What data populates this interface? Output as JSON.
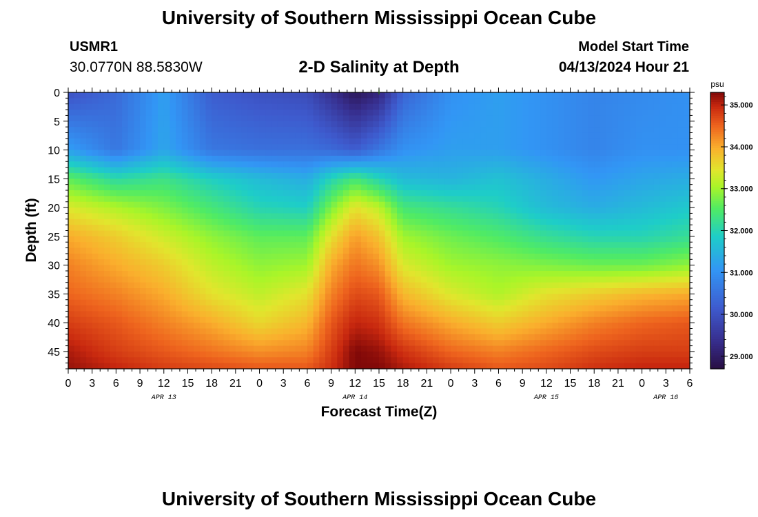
{
  "header": {
    "title": "University of Southern Mississippi Ocean Cube",
    "station_id": "USMR1",
    "station_coords": "30.0770N  88.5830W",
    "chart_title": "2-D Salinity at Depth",
    "model_label": "Model Start Time",
    "model_time": "04/13/2024 Hour 21"
  },
  "footer": {
    "title": "University of Southern Mississippi Ocean Cube"
  },
  "chart_data": {
    "type": "heatmap",
    "title": "2-D Salinity at Depth",
    "xlabel": "Forecast Time(Z)",
    "ylabel": "Depth (ft)",
    "x_ticks": [
      "0",
      "3",
      "6",
      "9",
      "12",
      "15",
      "18",
      "21",
      "0",
      "3",
      "6",
      "9",
      "12",
      "15",
      "18",
      "21",
      "0",
      "3",
      "6",
      "9",
      "12",
      "15",
      "18",
      "21",
      "0",
      "3",
      "6"
    ],
    "x_hours": [
      0,
      78
    ],
    "date_labels": [
      {
        "label": "APR 13",
        "hour": 12
      },
      {
        "label": "APR 14",
        "hour": 36
      },
      {
        "label": "APR 15",
        "hour": 60
      },
      {
        "label": "APR 16",
        "hour": 75
      }
    ],
    "y_ticks": [
      0,
      5,
      10,
      15,
      20,
      25,
      30,
      35,
      40,
      45
    ],
    "ylim": [
      0,
      48
    ],
    "colorbar": {
      "unit": "psu",
      "range": [
        28.7,
        35.3
      ],
      "tick_values": [
        29.0,
        30.0,
        31.0,
        32.0,
        33.0,
        34.0,
        35.0
      ],
      "tick_labels": [
        "29.000",
        "30.000",
        "31.000",
        "32.000",
        "33.000",
        "34.000",
        "35.000"
      ]
    },
    "depth_levels": [
      0,
      10,
      15,
      20,
      25,
      30,
      35,
      40,
      45,
      48
    ],
    "time_hours": [
      0,
      6,
      12,
      18,
      24,
      30,
      33,
      36,
      39,
      42,
      48,
      54,
      60,
      66,
      72,
      78
    ],
    "salinity": [
      [
        30.0,
        30.4,
        31.2,
        30.2,
        30.0,
        29.9,
        29.4,
        28.9,
        29.2,
        30.3,
        31.0,
        31.2,
        31.0,
        30.8,
        30.9,
        31.0
      ],
      [
        31.2,
        30.6,
        31.3,
        30.6,
        30.5,
        30.5,
        30.4,
        30.2,
        30.6,
        31.0,
        31.2,
        31.2,
        31.0,
        30.8,
        31.0,
        31.0
      ],
      [
        32.6,
        32.1,
        32.3,
        31.9,
        31.6,
        31.4,
        32.0,
        32.4,
        32.0,
        31.6,
        31.5,
        31.7,
        31.4,
        31.1,
        31.3,
        31.4
      ],
      [
        33.4,
        33.1,
        32.8,
        32.4,
        32.0,
        31.9,
        32.8,
        33.5,
        33.2,
        32.4,
        32.2,
        32.0,
        31.6,
        31.4,
        31.6,
        31.8
      ],
      [
        34.0,
        33.7,
        33.3,
        32.9,
        32.6,
        32.6,
        33.5,
        34.1,
        33.8,
        33.0,
        32.7,
        32.5,
        32.2,
        32.0,
        32.0,
        32.2
      ],
      [
        34.3,
        34.0,
        33.7,
        33.2,
        32.9,
        33.0,
        34.0,
        34.4,
        34.2,
        33.4,
        33.0,
        32.9,
        32.8,
        32.7,
        32.7,
        32.9
      ],
      [
        34.5,
        34.3,
        34.0,
        33.5,
        33.2,
        33.5,
        34.3,
        34.7,
        34.6,
        33.9,
        33.4,
        33.1,
        33.5,
        33.7,
        33.9,
        34.0
      ],
      [
        34.8,
        34.6,
        34.3,
        34.0,
        33.6,
        33.9,
        34.6,
        35.0,
        34.9,
        34.4,
        34.0,
        33.7,
        34.0,
        34.3,
        34.5,
        34.6
      ],
      [
        35.1,
        34.8,
        34.6,
        34.4,
        34.2,
        34.3,
        34.8,
        35.3,
        35.2,
        34.9,
        34.5,
        34.3,
        34.5,
        34.7,
        34.8,
        34.8
      ],
      [
        35.2,
        35.0,
        34.8,
        34.7,
        34.6,
        34.6,
        34.9,
        35.3,
        35.3,
        35.1,
        34.8,
        34.6,
        34.7,
        34.9,
        35.0,
        35.0
      ]
    ]
  }
}
